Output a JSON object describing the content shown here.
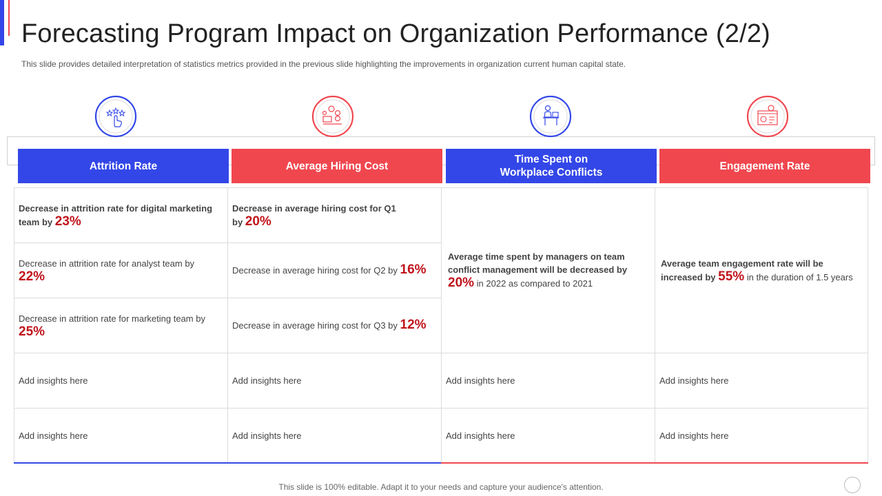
{
  "title": "Forecasting Program Impact on Organization Performance (2/2)",
  "subtitle": "This slide provides detailed interpretation of statistics metrics provided in the previous slide highlighting the improvements in organization current human capital state.",
  "colors": {
    "blue": "#3347e8",
    "red": "#f0474f",
    "percent": "#c0141c"
  },
  "columns": [
    {
      "header": "Attrition Rate",
      "icon": "rating-hand-icon",
      "color": "blue"
    },
    {
      "header": "Average Hiring Cost",
      "icon": "hiring-cost-icon",
      "color": "red"
    },
    {
      "header": "Time Spent on\nWorkplace Conflicts",
      "icon": "manager-desk-icon",
      "color": "blue"
    },
    {
      "header": "Engagement Rate",
      "icon": "engagement-dashboard-icon",
      "color": "red"
    }
  ],
  "attrition": [
    {
      "text": "Decrease in attrition rate for digital marketing team by",
      "value": "23%"
    },
    {
      "text": "Decrease in attrition rate for analyst team by",
      "value": "22%"
    },
    {
      "text": "Decrease in attrition rate for marketing team by",
      "value": "25%"
    }
  ],
  "hiring": [
    {
      "text": "Decrease in average hiring cost for Q1 by",
      "value": "20%"
    },
    {
      "text": "Decrease in average  hiring cost for Q2 by",
      "value": "16%"
    },
    {
      "text": "Decrease in average  hiring cost for Q3 by",
      "value": "12%"
    }
  ],
  "conflicts": {
    "text_bold": "Average time spent by managers on team conflict management will be decreased by",
    "value": "20%",
    "text_after": "in 2022 as compared  to 2021"
  },
  "engagement": {
    "text_bold": "Average team engagement rate will be increased by",
    "value": "55%",
    "text_after": "in the duration  of 1.5 years"
  },
  "insight_placeholder": "Add insights here",
  "footer": "This slide is 100% editable. Adapt it to your needs and capture your audience's attention."
}
